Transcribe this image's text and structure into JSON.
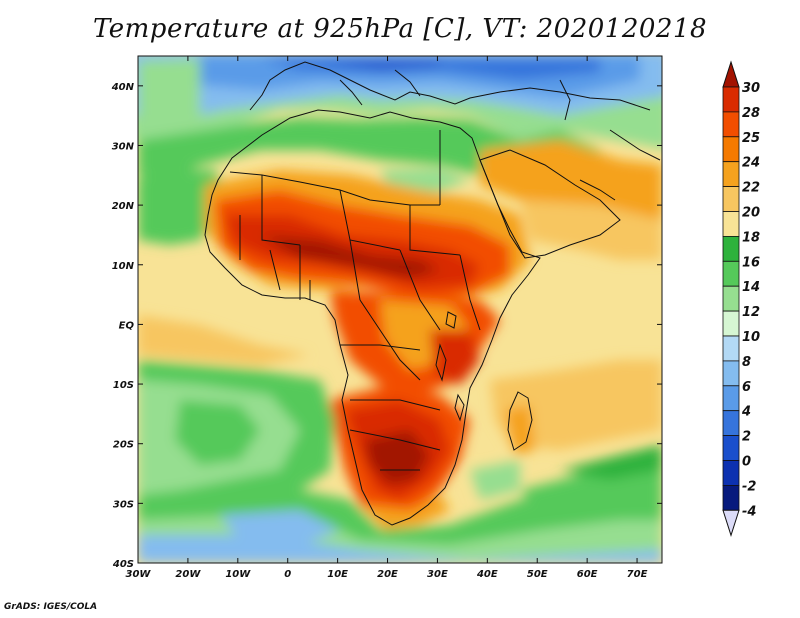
{
  "title": "Temperature at 925hPa [C], VT: 2020120218",
  "credit": "GrADS: IGES/COLA",
  "map": {
    "lon_range": [
      -30,
      75
    ],
    "lat_range": [
      -40,
      45
    ],
    "x_ticks": [
      "30W",
      "20W",
      "10W",
      "0",
      "10E",
      "20E",
      "30E",
      "40E",
      "50E",
      "60E",
      "70E"
    ],
    "y_ticks": [
      "40N",
      "30N",
      "20N",
      "10N",
      "EQ",
      "10S",
      "20S",
      "30S",
      "40S"
    ]
  },
  "colorbar": {
    "labels": [
      "30",
      "28",
      "25",
      "24",
      "22",
      "20",
      "18",
      "16",
      "14",
      "12",
      "10",
      "8",
      "6",
      "4",
      "2",
      "0",
      "-2",
      "-4"
    ],
    "colors": {
      "above30": "#a21200",
      "28_30": "#d92b00",
      "25_28": "#f24e00",
      "24_25": "#f57a00",
      "22_24": "#f5a21e",
      "20_22": "#f7c660",
      "18_20": "#f8e396",
      "16_18": "#2eb23c",
      "14_16": "#55c95a",
      "12_14": "#96de90",
      "10_12": "#d6f6d3",
      "8_10": "#b3d9f5",
      "6_8": "#84bcef",
      "4_6": "#5a9be8",
      "2_4": "#3674dc",
      "0_2": "#1a4fcc",
      "m2_0": "#0c31b0",
      "m4_m2": "#071a7d",
      "below_m4": "#dcdcf8"
    }
  }
}
